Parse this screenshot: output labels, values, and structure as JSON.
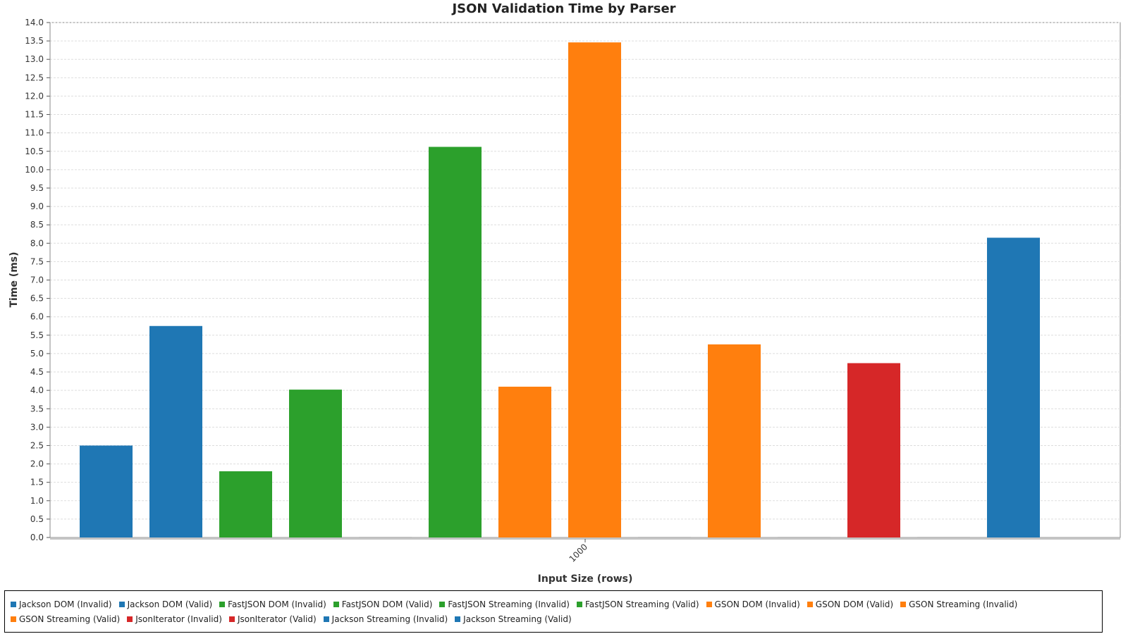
{
  "chart_data": {
    "type": "bar",
    "title": "JSON Validation Time by Parser",
    "xlabel": "Input Size (rows)",
    "ylabel": "Time (ms)",
    "categories": [
      "1000"
    ],
    "ylim": [
      0,
      14
    ],
    "ytick_step": 0.5,
    "grid": true,
    "legend_position": "bottom",
    "series": [
      {
        "name": "Jackson DOM (Invalid)",
        "color": "#1f77b4",
        "values": [
          2.5
        ]
      },
      {
        "name": "Jackson DOM (Valid)",
        "color": "#1f77b4",
        "values": [
          5.75
        ]
      },
      {
        "name": "FastJSON DOM (Invalid)",
        "color": "#2ca02c",
        "values": [
          1.8
        ]
      },
      {
        "name": "FastJSON DOM (Valid)",
        "color": "#2ca02c",
        "values": [
          4.02
        ]
      },
      {
        "name": "FastJSON Streaming (Invalid)",
        "color": "#2ca02c",
        "values": [
          0
        ]
      },
      {
        "name": "FastJSON Streaming (Valid)",
        "color": "#2ca02c",
        "values": [
          10.62
        ]
      },
      {
        "name": "GSON DOM (Invalid)",
        "color": "#ff7f0e",
        "values": [
          4.1
        ]
      },
      {
        "name": "GSON DOM (Valid)",
        "color": "#ff7f0e",
        "values": [
          13.46
        ]
      },
      {
        "name": "GSON Streaming (Invalid)",
        "color": "#ff7f0e",
        "values": [
          0
        ]
      },
      {
        "name": "GSON Streaming (Valid)",
        "color": "#ff7f0e",
        "values": [
          5.25
        ]
      },
      {
        "name": "JsonIterator (Invalid)",
        "color": "#d62728",
        "values": [
          0
        ]
      },
      {
        "name": "JsonIterator (Valid)",
        "color": "#d62728",
        "values": [
          4.74
        ]
      },
      {
        "name": "Jackson Streaming (Invalid)",
        "color": "#1f77b4",
        "values": [
          0
        ]
      },
      {
        "name": "Jackson Streaming (Valid)",
        "color": "#1f77b4",
        "values": [
          8.15
        ]
      }
    ]
  }
}
